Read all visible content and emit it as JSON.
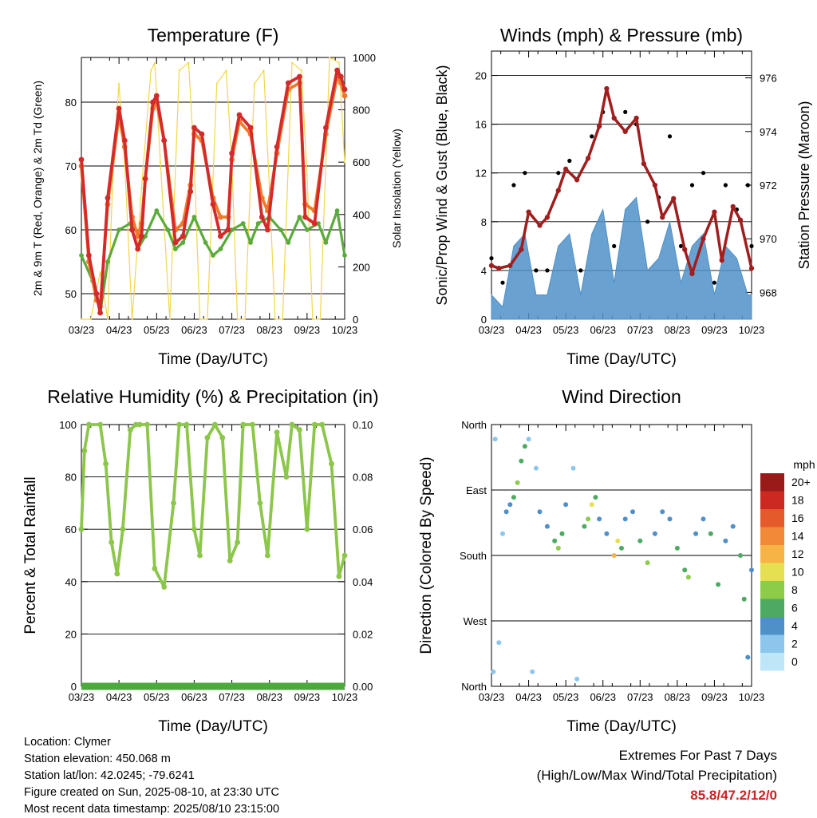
{
  "panels": {
    "temperature": {
      "title": "Temperature (F)",
      "xlabel": "Time (Day/UTC)",
      "ylabel_left": "2m & 9m T (Red, Orange) & 2m Td (Green)",
      "ylabel_right": "Solar Insolation (Yellow)",
      "x_ticks": [
        "03/23",
        "04/23",
        "05/23",
        "06/23",
        "07/23",
        "08/23",
        "09/23",
        "10/23"
      ],
      "y_ticks_left": [
        "50",
        "60",
        "70",
        "80"
      ],
      "y_ticks_right": [
        "0",
        "200",
        "400",
        "600",
        "800",
        "1000"
      ]
    },
    "winds": {
      "title": "Winds (mph) & Pressure (mb)",
      "xlabel": "Time (Day/UTC)",
      "ylabel_left": "Sonic/Prop Wind & Gust (Blue, Black)",
      "ylabel_right": "Station Pressure (Maroon)",
      "x_ticks": [
        "03/23",
        "04/23",
        "05/23",
        "06/23",
        "07/23",
        "08/23",
        "09/23",
        "10/23"
      ],
      "y_ticks_left": [
        "0",
        "4",
        "8",
        "12",
        "16",
        "20"
      ],
      "y_ticks_right": [
        "968",
        "970",
        "972",
        "974",
        "976"
      ]
    },
    "humidity": {
      "title": "Relative Humidity (%) & Precipitation (in)",
      "xlabel": "Time (Day/UTC)",
      "ylabel_left": "Percent & Total Rainfall",
      "x_ticks": [
        "03/23",
        "04/23",
        "05/23",
        "06/23",
        "07/23",
        "08/23",
        "09/23",
        "10/23"
      ],
      "y_ticks_left": [
        "0",
        "20",
        "40",
        "60",
        "80",
        "100"
      ],
      "y_ticks_right": [
        "0.00",
        "0.02",
        "0.04",
        "0.06",
        "0.08",
        "0.10"
      ]
    },
    "direction": {
      "title": "Wind Direction",
      "xlabel": "Time (Day/UTC)",
      "ylabel_left": "Direction (Colored By Speed)",
      "x_ticks": [
        "03/23",
        "04/23",
        "05/23",
        "06/23",
        "07/23",
        "08/23",
        "09/23",
        "10/23"
      ],
      "y_ticks_left": [
        "North",
        "East",
        "South",
        "West",
        "North"
      ],
      "legend_title": "mph",
      "legend_labels": [
        "0",
        "2",
        "4",
        "6",
        "8",
        "10",
        "12",
        "14",
        "16",
        "18",
        "20+"
      ],
      "legend_colors": [
        "#bfe6f7",
        "#8cc6ec",
        "#4f90c8",
        "#4caa62",
        "#8ccc48",
        "#e5e052",
        "#f6b446",
        "#f08a38",
        "#e45a2a",
        "#cc2a20",
        "#9a1a1a"
      ]
    }
  },
  "info": {
    "location": "Location: Clymer",
    "elevation": "Station elevation: 450.068 m",
    "latlon": "Station lat/lon: 42.0245; -79.6241",
    "created": "Figure created on Sun, 2025-08-10, at 23:30 UTC",
    "recent": "Most recent data timestamp: 2025/08/10 23:15:00"
  },
  "extremes": {
    "title": "Extremes For Past 7 Days",
    "subtitle": "(High/Low/Max Wind/Total Precipitation)",
    "values": "85.8/47.2/12/0"
  },
  "chart_data": [
    {
      "type": "line",
      "title": "Temperature (F)",
      "xlabel": "Time (Day/UTC)",
      "ylabel": "2m & 9m T (Red, Orange) & 2m Td (Green)",
      "y2label": "Solar Insolation (Yellow)",
      "x_categories": [
        "03/23",
        "04/23",
        "05/23",
        "06/23",
        "07/23",
        "08/23",
        "09/23",
        "10/23"
      ],
      "x_range": [
        0,
        7
      ],
      "ylim": [
        46,
        87
      ],
      "y2lim": [
        0,
        1000
      ],
      "series": [
        {
          "name": "2m T",
          "color": "#d42a2a",
          "axis": "left",
          "x": [
            0,
            0.2,
            0.4,
            0.5,
            0.7,
            1,
            1.15,
            1.35,
            1.5,
            1.6,
            1.7,
            1.9,
            2.0,
            2.2,
            2.5,
            2.7,
            2.9,
            3.0,
            3.2,
            3.5,
            3.7,
            3.9,
            4.0,
            4.2,
            4.5,
            4.8,
            4.95,
            5.2,
            5.5,
            5.8,
            5.95,
            6.2,
            6.5,
            6.8,
            6.9,
            7.0
          ],
          "values": [
            71,
            56,
            50,
            47,
            65,
            79,
            74,
            60,
            57,
            59,
            68,
            80,
            81,
            74,
            58,
            59,
            66,
            76,
            75,
            64,
            59,
            60,
            72,
            78,
            76,
            62,
            60,
            73,
            83,
            84,
            62,
            61,
            76,
            85,
            84,
            82
          ]
        },
        {
          "name": "9m T",
          "color": "#f07a2a",
          "axis": "left",
          "x": [
            0,
            0.2,
            0.4,
            0.5,
            0.7,
            1,
            1.15,
            1.35,
            1.5,
            1.6,
            1.7,
            1.9,
            2.0,
            2.2,
            2.5,
            2.7,
            2.9,
            3.0,
            3.2,
            3.5,
            3.7,
            3.9,
            4.0,
            4.2,
            4.5,
            4.8,
            4.95,
            5.2,
            5.5,
            5.8,
            5.95,
            6.2,
            6.5,
            6.8,
            6.9,
            7.0
          ],
          "values": [
            70,
            55,
            49,
            48,
            64,
            78,
            73,
            62,
            59,
            61,
            68,
            79,
            80,
            74,
            60,
            61,
            67,
            75,
            74,
            65,
            62,
            62,
            71,
            77,
            75,
            65,
            63,
            72,
            82,
            83,
            64,
            63,
            75,
            84,
            83,
            81
          ]
        },
        {
          "name": "2m Td",
          "color": "#5aaa3c",
          "axis": "left",
          "x": [
            0,
            0.3,
            0.5,
            0.7,
            1.0,
            1.3,
            1.5,
            1.7,
            2.0,
            2.3,
            2.5,
            2.7,
            3.0,
            3.3,
            3.5,
            3.7,
            4.0,
            4.3,
            4.5,
            4.7,
            5.0,
            5.3,
            5.5,
            5.8,
            6.0,
            6.3,
            6.5,
            6.8,
            7.0
          ],
          "values": [
            56,
            52,
            47,
            55,
            60,
            61,
            57,
            59,
            63,
            60,
            57,
            58,
            62,
            58,
            56,
            57,
            60,
            61,
            58,
            61,
            62,
            60,
            58,
            62,
            60,
            61,
            58,
            63,
            56
          ]
        },
        {
          "name": "Solar Insolation",
          "color": "#f2d64a",
          "axis": "right",
          "x": [
            0.0,
            0.25,
            0.5,
            0.7,
            0.85,
            1.0,
            1.15,
            1.35,
            1.6,
            1.85,
            1.95,
            2.1,
            2.35,
            2.6,
            2.85,
            3.0,
            3.15,
            3.35,
            3.6,
            3.85,
            4.0,
            4.15,
            4.35,
            4.6,
            4.85,
            5.0,
            5.15,
            5.35,
            5.6,
            5.85,
            6.0,
            6.15,
            6.35,
            6.6,
            6.85,
            7.0
          ],
          "values": [
            0,
            0,
            180,
            0,
            600,
            900,
            600,
            0,
            500,
            950,
            980,
            600,
            0,
            950,
            980,
            600,
            0,
            0,
            900,
            950,
            600,
            0,
            0,
            900,
            950,
            500,
            0,
            0,
            980,
            950,
            550,
            0,
            0,
            1000,
            980,
            600
          ]
        }
      ]
    },
    {
      "type": "line",
      "title": "Winds (mph) & Pressure (mb)",
      "xlabel": "Time (Day/UTC)",
      "ylabel": "Sonic/Prop Wind & Gust (Blue, Black)",
      "y2label": "Station Pressure (Maroon)",
      "x_categories": [
        "03/23",
        "04/23",
        "05/23",
        "06/23",
        "07/23",
        "08/23",
        "09/23",
        "10/23"
      ],
      "x_range": [
        0,
        7
      ],
      "ylim": [
        0,
        22
      ],
      "y2lim": [
        967,
        977
      ],
      "series": [
        {
          "name": "Wind",
          "color": "#4f90c8",
          "axis": "left",
          "x": [
            0,
            0.3,
            0.6,
            0.9,
            1.2,
            1.5,
            1.8,
            2.1,
            2.4,
            2.7,
            3.0,
            3.3,
            3.6,
            3.9,
            4.2,
            4.5,
            4.8,
            5.1,
            5.4,
            5.7,
            6.0,
            6.3,
            6.6,
            6.9,
            7.0
          ],
          "values": [
            2,
            1,
            6,
            7,
            2,
            2,
            6,
            7,
            2,
            7,
            9,
            3,
            9,
            10,
            4,
            5,
            8,
            3,
            6,
            7,
            2,
            6,
            5,
            2,
            2
          ]
        },
        {
          "name": "Gust",
          "color": "#000000",
          "axis": "left",
          "x": [
            0,
            0.3,
            0.6,
            0.9,
            1.2,
            1.5,
            1.8,
            2.1,
            2.4,
            2.7,
            3.0,
            3.3,
            3.6,
            3.9,
            4.2,
            4.5,
            4.8,
            5.1,
            5.4,
            5.7,
            6.0,
            6.3,
            6.6,
            6.9,
            7.0
          ],
          "values": [
            5,
            3,
            11,
            12,
            4,
            4,
            12,
            13,
            4,
            15,
            17,
            6,
            17,
            16,
            8,
            10,
            15,
            6,
            11,
            12,
            3,
            11,
            9,
            11,
            6
          ]
        },
        {
          "name": "Station Pressure",
          "color": "#a01e1e",
          "axis": "right",
          "x": [
            0,
            0.2,
            0.5,
            0.8,
            1.0,
            1.3,
            1.5,
            1.8,
            2.0,
            2.3,
            2.6,
            2.9,
            3.1,
            3.3,
            3.6,
            3.9,
            4.1,
            4.4,
            4.6,
            4.9,
            5.2,
            5.4,
            5.7,
            6.0,
            6.2,
            6.5,
            6.7,
            7.0
          ],
          "values": [
            969,
            968.9,
            969,
            969.6,
            971,
            970.5,
            970.8,
            971.8,
            972.6,
            972.2,
            973,
            974.2,
            975.6,
            974.5,
            974,
            974.5,
            972.8,
            972,
            970.8,
            971.5,
            969.6,
            968.7,
            970,
            971,
            969.2,
            971.2,
            970.7,
            968.9
          ]
        }
      ]
    },
    {
      "type": "line",
      "title": "Relative Humidity (%) & Precipitation (in)",
      "xlabel": "Time (Day/UTC)",
      "ylabel": "Percent & Total Rainfall",
      "x_categories": [
        "03/23",
        "04/23",
        "05/23",
        "06/23",
        "07/23",
        "08/23",
        "09/23",
        "10/23"
      ],
      "x_range": [
        0,
        7
      ],
      "ylim": [
        0,
        100
      ],
      "y2lim": [
        0,
        0.1
      ],
      "series": [
        {
          "name": "Relative Humidity",
          "color": "#8cc64a",
          "axis": "left",
          "x": [
            0,
            0.08,
            0.2,
            0.5,
            0.65,
            0.8,
            0.95,
            1.1,
            1.3,
            1.45,
            1.55,
            1.75,
            1.95,
            2.2,
            2.45,
            2.6,
            2.8,
            3.0,
            3.15,
            3.35,
            3.55,
            3.75,
            3.95,
            4.15,
            4.3,
            4.55,
            4.75,
            4.95,
            5.2,
            5.45,
            5.6,
            5.8,
            6.0,
            6.2,
            6.4,
            6.65,
            6.85,
            7.0
          ],
          "values": [
            60,
            90,
            100,
            100,
            85,
            55,
            43,
            60,
            98,
            100,
            100,
            100,
            45,
            38,
            70,
            100,
            100,
            60,
            50,
            95,
            100,
            95,
            48,
            55,
            100,
            100,
            70,
            50,
            97,
            80,
            100,
            98,
            60,
            100,
            100,
            85,
            42,
            50
          ]
        },
        {
          "name": "Total Precipitation",
          "color": "#4caa3c",
          "axis": "right",
          "x": [
            0,
            7
          ],
          "values": [
            0,
            0
          ]
        }
      ]
    },
    {
      "type": "scatter",
      "title": "Wind Direction",
      "xlabel": "Time (Day/UTC)",
      "ylabel": "Direction (Colored By Speed)",
      "x_categories": [
        "03/23",
        "04/23",
        "05/23",
        "06/23",
        "07/23",
        "08/23",
        "09/23",
        "10/23"
      ],
      "x_range": [
        0,
        7
      ],
      "ylim": [
        0,
        360
      ],
      "y_tick_labels": [
        "North",
        "East",
        "South",
        "West",
        "North"
      ],
      "color_scale": {
        "title": "mph",
        "labels": [
          "0",
          "2",
          "4",
          "6",
          "8",
          "10",
          "12",
          "14",
          "16",
          "18",
          "20+"
        ]
      },
      "points": [
        {
          "x": 0.05,
          "dir": 340,
          "speed": 1
        },
        {
          "x": 0.1,
          "dir": 20,
          "speed": 1
        },
        {
          "x": 0.2,
          "dir": 300,
          "speed": 1
        },
        {
          "x": 0.3,
          "dir": 150,
          "speed": 2
        },
        {
          "x": 0.4,
          "dir": 120,
          "speed": 3
        },
        {
          "x": 0.5,
          "dir": 110,
          "speed": 4
        },
        {
          "x": 0.6,
          "dir": 100,
          "speed": 6
        },
        {
          "x": 0.7,
          "dir": 80,
          "speed": 7
        },
        {
          "x": 0.8,
          "dir": 50,
          "speed": 6
        },
        {
          "x": 0.9,
          "dir": 30,
          "speed": 5
        },
        {
          "x": 1.0,
          "dir": 20,
          "speed": 2
        },
        {
          "x": 1.1,
          "dir": 340,
          "speed": 1
        },
        {
          "x": 1.2,
          "dir": 60,
          "speed": 2
        },
        {
          "x": 1.3,
          "dir": 120,
          "speed": 3
        },
        {
          "x": 1.5,
          "dir": 140,
          "speed": 4
        },
        {
          "x": 1.7,
          "dir": 160,
          "speed": 6
        },
        {
          "x": 1.8,
          "dir": 170,
          "speed": 7
        },
        {
          "x": 1.9,
          "dir": 150,
          "speed": 5
        },
        {
          "x": 2.0,
          "dir": 110,
          "speed": 3
        },
        {
          "x": 2.2,
          "dir": 60,
          "speed": 2
        },
        {
          "x": 2.3,
          "dir": 350,
          "speed": 1
        },
        {
          "x": 2.5,
          "dir": 140,
          "speed": 6
        },
        {
          "x": 2.6,
          "dir": 130,
          "speed": 8
        },
        {
          "x": 2.7,
          "dir": 110,
          "speed": 10
        },
        {
          "x": 2.8,
          "dir": 100,
          "speed": 6
        },
        {
          "x": 2.9,
          "dir": 130,
          "speed": 3
        },
        {
          "x": 3.1,
          "dir": 150,
          "speed": 4
        },
        {
          "x": 3.3,
          "dir": 180,
          "speed": 11
        },
        {
          "x": 3.4,
          "dir": 160,
          "speed": 10
        },
        {
          "x": 3.5,
          "dir": 170,
          "speed": 5
        },
        {
          "x": 3.6,
          "dir": 130,
          "speed": 4
        },
        {
          "x": 3.8,
          "dir": 120,
          "speed": 3
        },
        {
          "x": 4.0,
          "dir": 160,
          "speed": 6
        },
        {
          "x": 4.2,
          "dir": 190,
          "speed": 7
        },
        {
          "x": 4.4,
          "dir": 150,
          "speed": 4
        },
        {
          "x": 4.6,
          "dir": 120,
          "speed": 3
        },
        {
          "x": 4.8,
          "dir": 130,
          "speed": 4
        },
        {
          "x": 5.0,
          "dir": 170,
          "speed": 6
        },
        {
          "x": 5.2,
          "dir": 200,
          "speed": 6
        },
        {
          "x": 5.3,
          "dir": 210,
          "speed": 7
        },
        {
          "x": 5.5,
          "dir": 150,
          "speed": 4
        },
        {
          "x": 5.7,
          "dir": 130,
          "speed": 3
        },
        {
          "x": 5.9,
          "dir": 150,
          "speed": 5
        },
        {
          "x": 6.1,
          "dir": 220,
          "speed": 5
        },
        {
          "x": 6.3,
          "dir": 160,
          "speed": 3
        },
        {
          "x": 6.5,
          "dir": 140,
          "speed": 4
        },
        {
          "x": 6.7,
          "dir": 180,
          "speed": 5
        },
        {
          "x": 6.8,
          "dir": 240,
          "speed": 6
        },
        {
          "x": 6.9,
          "dir": 320,
          "speed": 4
        },
        {
          "x": 7.0,
          "dir": 200,
          "speed": 3
        }
      ]
    }
  ]
}
